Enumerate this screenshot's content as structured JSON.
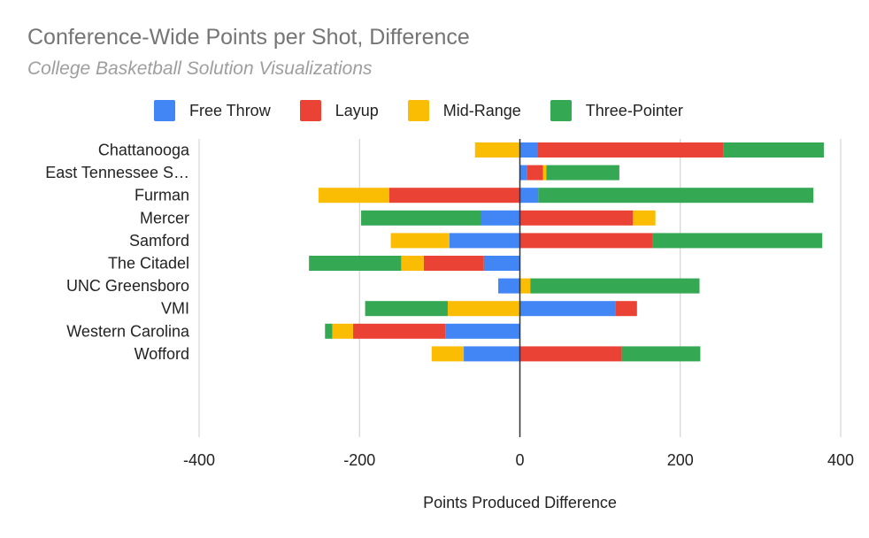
{
  "colors": {
    "free_throw": "#4285F4",
    "layup": "#EA4335",
    "mid_range": "#FBBC04",
    "three_pointer": "#34A853",
    "gridline": "#cccccc",
    "zero_line": "#333333"
  },
  "chart_data": {
    "type": "bar",
    "orientation": "horizontal",
    "stacked": true,
    "title": "Conference-Wide Points per Shot, Difference",
    "subtitle": "College Basketball Solution Visualizations",
    "xlabel": "Points Produced Difference",
    "ylabel": "",
    "xlim": [
      -400,
      400
    ],
    "x_ticks": [
      -400,
      -200,
      0,
      200,
      400
    ],
    "grid": true,
    "legend_position": "top",
    "categories": [
      "Chattanooga",
      "East Tennessee S…",
      "Furman",
      "Mercer",
      "Samford",
      "The Citadel",
      "UNC Greensboro",
      "VMI",
      "Western Carolina",
      "Wofford"
    ],
    "series": [
      {
        "name": "Free Throw",
        "color_key": "free_throw",
        "values": [
          22,
          9,
          23,
          -48,
          -88,
          -45,
          -27,
          119,
          -93,
          -70
        ]
      },
      {
        "name": "Layup",
        "color_key": "layup",
        "values": [
          232,
          20,
          -163,
          141,
          165,
          -75,
          0,
          27,
          -115,
          127
        ]
      },
      {
        "name": "Mid-Range",
        "color_key": "mid_range",
        "values": [
          -56,
          4,
          -88,
          28,
          -73,
          -28,
          13,
          -90,
          -26,
          -40
        ]
      },
      {
        "name": "Three-Pointer",
        "color_key": "three_pointer",
        "values": [
          125,
          91,
          343,
          -150,
          212,
          -115,
          211,
          -103,
          -9,
          98
        ]
      }
    ]
  }
}
